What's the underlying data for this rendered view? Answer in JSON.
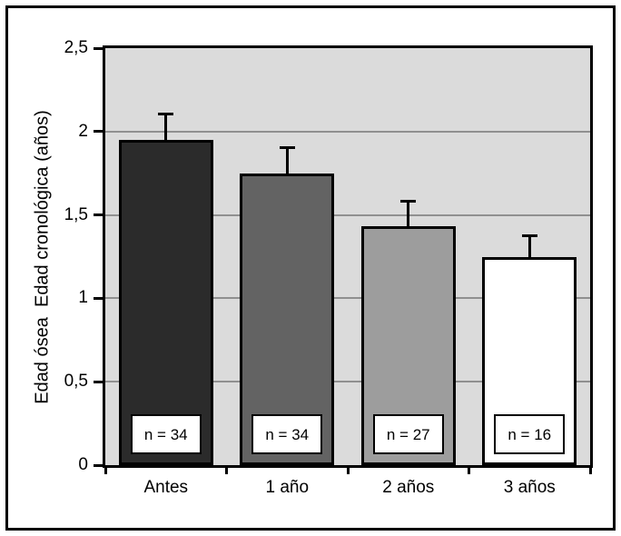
{
  "figure": {
    "background": "#ffffff",
    "frame_color": "#000000"
  },
  "chart_data": {
    "type": "bar",
    "title": "",
    "xlabel": "",
    "ylabel": "Edad ósea  Edad cronológica (años)",
    "ylim": [
      0,
      2.5
    ],
    "ytick_values": [
      0,
      0.5,
      1,
      1.5,
      2,
      2.5
    ],
    "ytick_labels": [
      "0",
      "0,5",
      "1",
      "1,5",
      "2",
      "2,5"
    ],
    "grid": "horizontal",
    "gridline_color": "#909090",
    "plot_background": "#dbdbdb",
    "categories": [
      "Antes",
      "1 año",
      "2 años",
      "3 años"
    ],
    "values": [
      1.95,
      1.75,
      1.43,
      1.25
    ],
    "errors": [
      0.15,
      0.15,
      0.15,
      0.12
    ],
    "error_direction": "up",
    "bar_labels": [
      "n = 34",
      "n = 34",
      "n = 27",
      "n = 16"
    ],
    "bar_colors": [
      "#2b2b2b",
      "#636363",
      "#9d9d9d",
      "#ffffff"
    ],
    "bar_border_color": "#000000",
    "legend": null
  }
}
